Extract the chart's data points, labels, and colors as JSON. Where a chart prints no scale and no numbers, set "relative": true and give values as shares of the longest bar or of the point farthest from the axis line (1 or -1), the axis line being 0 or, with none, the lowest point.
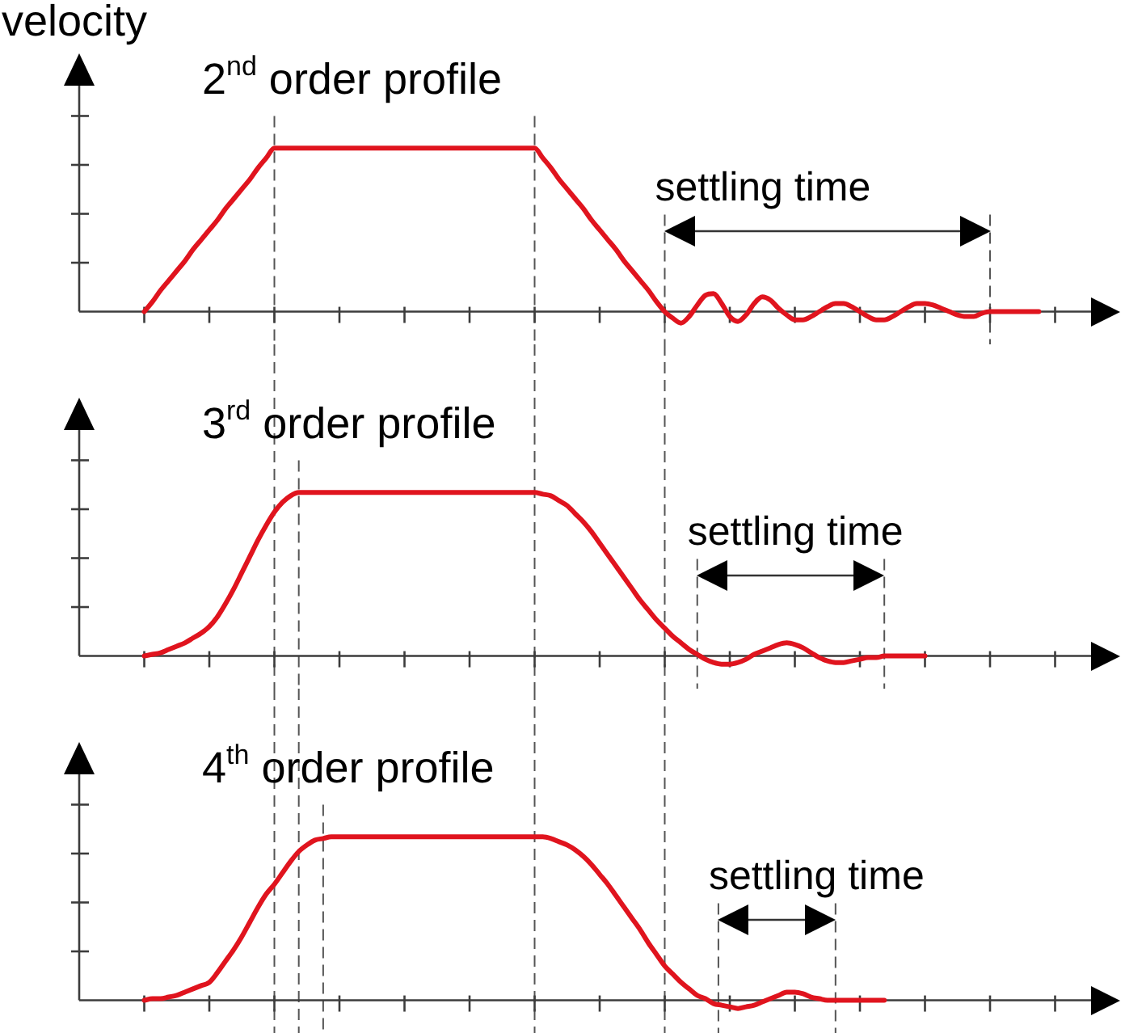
{
  "chart_data": [
    {
      "type": "line",
      "title": "2$^{nd}$ order profile",
      "ylabel": "velocity",
      "categories": [
        null,
        null,
        null,
        null,
        null,
        null,
        null,
        null,
        null,
        null,
        null,
        null,
        null,
        null,
        null,
        null,
        null,
        null,
        null,
        null,
        null,
        null,
        null,
        null,
        null,
        null,
        null,
        null,
        null,
        null,
        null,
        null,
        null,
        null,
        null,
        null,
        null,
        null,
        null,
        null,
        null,
        null,
        null,
        null,
        null,
        null,
        null,
        null,
        null,
        null,
        null,
        null,
        null,
        null,
        null,
        null,
        null,
        null,
        null,
        null,
        null,
        null,
        null,
        null,
        null,
        null,
        null,
        null,
        null,
        null,
        null,
        null,
        null,
        null,
        null,
        null,
        null,
        null,
        null,
        null,
        null,
        null,
        null,
        null,
        null,
        null,
        null,
        null,
        null,
        null,
        null,
        null,
        null,
        null,
        null,
        null,
        null,
        null,
        null,
        null,
        null,
        null,
        null,
        null,
        null,
        null,
        null,
        null,
        null,
        null,
        null,
        null,
        null,
        null,
        null,
        null,
        null,
        null,
        null,
        null,
        null,
        null,
        null,
        null,
        null,
        null,
        null,
        null,
        null
      ],
      "series": [
        {
          "color": "#e0141e",
          "values": [
            null,
            null,
            null,
            null,
            null,
            null,
            null,
            null,
            0,
            0.06,
            0.13,
            0.19,
            0.25,
            0.31,
            0.38,
            0.44,
            0.5,
            0.56,
            0.63,
            0.69,
            0.75,
            0.81,
            0.88,
            0.94,
            1,
            1,
            1,
            1,
            1,
            1,
            1,
            1,
            1,
            1,
            1,
            1,
            1,
            1,
            1,
            1,
            1,
            1,
            1,
            1,
            1,
            1,
            1,
            1,
            1,
            1,
            1,
            1,
            1,
            1,
            1,
            1,
            1,
            0.94,
            0.88,
            0.81,
            0.75,
            0.69,
            0.63,
            0.56,
            0.5,
            0.44,
            0.38,
            0.31,
            0.25,
            0.19,
            0.13,
            0.06,
            0,
            -0.04,
            -0.07,
            -0.03,
            0.04,
            0.1,
            0.11,
            0.05,
            -0.03,
            -0.06,
            -0.02,
            0.05,
            0.09,
            0.07,
            0.02,
            -0.02,
            -0.05,
            -0.05,
            -0.03,
            0,
            0.03,
            0.05,
            0.05,
            0.03,
            0,
            -0.03,
            -0.05,
            -0.05,
            -0.03,
            0,
            0.03,
            0.05,
            0.05,
            0.04,
            0.02,
            0,
            -0.02,
            -0.03,
            -0.03,
            -0.01,
            0,
            0,
            0,
            0,
            0,
            0,
            0,
            null,
            null,
            null,
            null,
            null,
            null,
            null,
            null,
            null,
            null
          ]
        }
      ],
      "relative": true,
      "marker": "none",
      "annotations": [
        "settling time"
      ]
    },
    {
      "type": "line",
      "title": "3$^{rd}$ order profile",
      "categories": [
        null,
        null,
        null,
        null,
        null,
        null,
        null,
        null,
        null,
        null,
        null,
        null,
        null,
        null,
        null,
        null,
        null,
        null,
        null,
        null,
        null,
        null,
        null,
        null,
        null,
        null,
        null,
        null,
        null,
        null,
        null,
        null,
        null,
        null,
        null,
        null,
        null,
        null,
        null,
        null,
        null,
        null,
        null,
        null,
        null,
        null,
        null,
        null,
        null,
        null,
        null,
        null,
        null,
        null,
        null,
        null,
        null,
        null,
        null,
        null,
        null,
        null,
        null,
        null,
        null,
        null,
        null,
        null,
        null,
        null,
        null,
        null,
        null,
        null,
        null,
        null,
        null,
        null,
        null,
        null,
        null,
        null,
        null,
        null,
        null,
        null,
        null,
        null,
        null,
        null,
        null,
        null,
        null,
        null,
        null,
        null,
        null,
        null,
        null,
        null,
        null,
        null,
        null,
        null,
        null,
        null,
        null,
        null,
        null,
        null,
        null,
        null,
        null,
        null,
        null,
        null,
        null,
        null,
        null,
        null,
        null,
        null,
        null,
        null,
        null,
        null,
        null,
        null,
        null
      ],
      "series": [
        {
          "color": "#e0141e",
          "values": [
            null,
            null,
            null,
            null,
            null,
            null,
            null,
            null,
            0,
            0.01,
            0.02,
            0.04,
            0.06,
            0.08,
            0.11,
            0.14,
            0.18,
            0.24,
            0.32,
            0.41,
            0.51,
            0.61,
            0.71,
            0.8,
            0.88,
            0.94,
            0.98,
            1,
            1,
            1,
            1,
            1,
            1,
            1,
            1,
            1,
            1,
            1,
            1,
            1,
            1,
            1,
            1,
            1,
            1,
            1,
            1,
            1,
            1,
            1,
            1,
            1,
            1,
            1,
            1,
            1,
            1,
            0.99,
            0.98,
            0.95,
            0.92,
            0.87,
            0.82,
            0.76,
            0.69,
            0.62,
            0.55,
            0.48,
            0.41,
            0.34,
            0.28,
            0.22,
            0.17,
            0.12,
            0.08,
            0.04,
            0.01,
            -0.02,
            -0.04,
            -0.05,
            -0.05,
            -0.04,
            -0.02,
            0.01,
            0.03,
            0.05,
            0.07,
            0.08,
            0.07,
            0.05,
            0.02,
            -0.01,
            -0.03,
            -0.04,
            -0.04,
            -0.03,
            -0.02,
            -0.01,
            -0.01,
            0,
            0,
            0,
            0,
            0,
            0,
            null,
            null,
            null,
            null,
            null,
            null,
            null,
            null,
            null,
            null,
            null,
            null,
            null,
            null,
            null,
            null,
            null,
            null,
            null,
            null,
            null,
            null,
            null,
            null
          ]
        }
      ],
      "relative": true,
      "marker": "none",
      "annotations": [
        "settling time"
      ]
    },
    {
      "type": "line",
      "title": "4$^{th}$ order profile",
      "categories": [
        null,
        null,
        null,
        null,
        null,
        null,
        null,
        null,
        null,
        null,
        null,
        null,
        null,
        null,
        null,
        null,
        null,
        null,
        null,
        null,
        null,
        null,
        null,
        null,
        null,
        null,
        null,
        null,
        null,
        null,
        null,
        null,
        null,
        null,
        null,
        null,
        null,
        null,
        null,
        null,
        null,
        null,
        null,
        null,
        null,
        null,
        null,
        null,
        null,
        null,
        null,
        null,
        null,
        null,
        null,
        null,
        null,
        null,
        null,
        null,
        null,
        null,
        null,
        null,
        null,
        null,
        null,
        null,
        null,
        null,
        null,
        null,
        null,
        null,
        null,
        null,
        null,
        null,
        null,
        null,
        null,
        null,
        null,
        null,
        null,
        null,
        null,
        null,
        null,
        null,
        null,
        null,
        null,
        null,
        null,
        null,
        null,
        null,
        null,
        null,
        null,
        null,
        null,
        null,
        null,
        null,
        null,
        null,
        null,
        null,
        null,
        null,
        null,
        null,
        null,
        null,
        null,
        null,
        null,
        null,
        null,
        null,
        null,
        null,
        null,
        null,
        null,
        null,
        null
      ],
      "series": [
        {
          "color": "#e0141e",
          "values": [
            null,
            null,
            null,
            null,
            null,
            null,
            null,
            null,
            0,
            0.01,
            0.01,
            0.02,
            0.03,
            0.05,
            0.07,
            0.09,
            0.11,
            0.17,
            0.24,
            0.31,
            0.39,
            0.48,
            0.57,
            0.65,
            0.71,
            0.78,
            0.85,
            0.91,
            0.95,
            0.98,
            0.99,
            1,
            1,
            1,
            1,
            1,
            1,
            1,
            1,
            1,
            1,
            1,
            1,
            1,
            1,
            1,
            1,
            1,
            1,
            1,
            1,
            1,
            1,
            1,
            1,
            1,
            1,
            1,
            0.99,
            0.97,
            0.95,
            0.92,
            0.88,
            0.83,
            0.77,
            0.71,
            0.64,
            0.57,
            0.5,
            0.43,
            0.35,
            0.28,
            0.21,
            0.16,
            0.11,
            0.07,
            0.03,
            0.01,
            -0.02,
            -0.03,
            -0.04,
            -0.05,
            -0.04,
            -0.03,
            -0.01,
            0.01,
            0.03,
            0.05,
            0.05,
            0.04,
            0.02,
            0.01,
            0,
            0,
            0,
            0,
            0,
            0,
            0,
            0,
            null,
            null,
            null,
            null,
            null,
            null,
            null,
            null,
            null,
            null,
            null,
            null,
            null,
            null,
            null,
            null,
            null,
            null,
            null,
            null,
            null,
            null,
            null,
            null,
            null,
            null,
            null,
            null,
            null
          ]
        }
      ],
      "relative": true,
      "marker": "none",
      "annotations": [
        "settling time"
      ]
    }
  ]
}
